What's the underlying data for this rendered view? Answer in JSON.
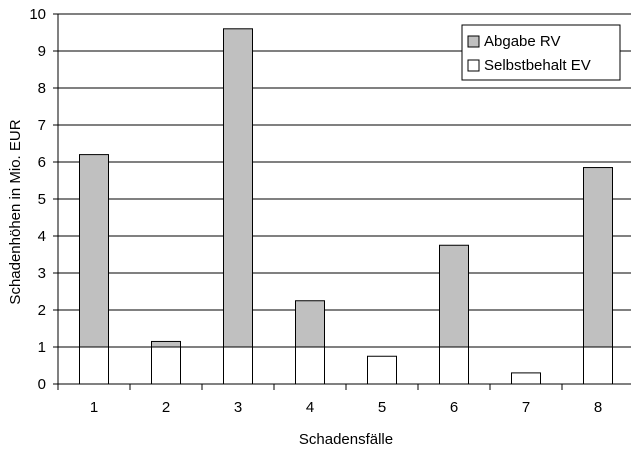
{
  "chart_data": {
    "type": "bar",
    "stacked": true,
    "categories": [
      "1",
      "2",
      "3",
      "4",
      "5",
      "6",
      "7",
      "8"
    ],
    "series": [
      {
        "name": "Selbstbehalt EV",
        "values": [
          1,
          1,
          1,
          1,
          0.75,
          1,
          0.3,
          1
        ],
        "color": "#ffffff"
      },
      {
        "name": "Abgabe RV",
        "values": [
          5.2,
          0.15,
          8.6,
          1.25,
          0,
          2.75,
          0,
          4.85
        ],
        "color": "#c0c0c0"
      }
    ],
    "legend_order": [
      "Abgabe RV",
      "Selbstbehalt EV"
    ],
    "xlabel": "Schadensfälle",
    "ylabel": "Schadenhöhen in Mio. EUR",
    "ylim": [
      0,
      10
    ],
    "yticks": [
      "0",
      "1",
      "2",
      "3",
      "4",
      "5",
      "6",
      "7",
      "8",
      "9",
      "10"
    ],
    "grid": true,
    "legend_position": "top-right"
  }
}
